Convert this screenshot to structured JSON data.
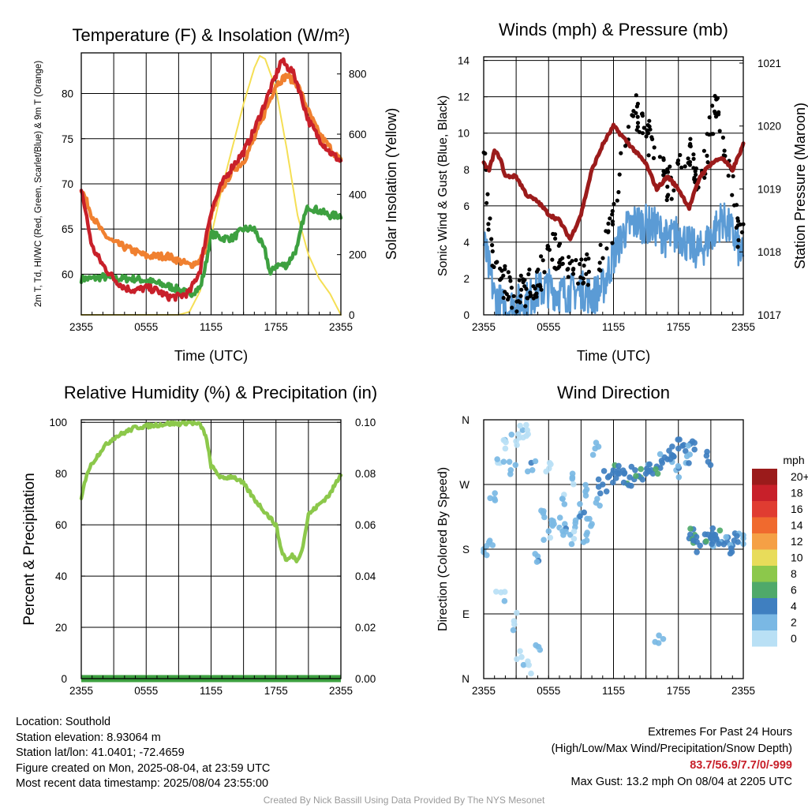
{
  "chart_data": [
    {
      "type": "line",
      "title": "Temperature (F) & Insolation (W/m²)",
      "xlabel": "Time (UTC)",
      "ylabel_left": "2m T, Td, HI/WC (Red, Green, Scarlet/Blue) & 9m T (Orange)",
      "ylabel_right": "Solar Insolation (Yellow)",
      "x_ticks": [
        "2355",
        "0555",
        "1155",
        "1755",
        "2355"
      ],
      "y_ticks_left": [
        60,
        65,
        70,
        75,
        80
      ],
      "ylim_left": [
        55.5,
        84.5
      ],
      "y_ticks_right": [
        0,
        200,
        400,
        600,
        800
      ],
      "ylim_right": [
        0,
        870
      ],
      "grid": true,
      "series": [
        {
          "name": "2m T",
          "color": "#c8202a",
          "axis": "left",
          "x": [
            0,
            1,
            2,
            3,
            4,
            5,
            6,
            7,
            8,
            9,
            10,
            11,
            11.5,
            12,
            13,
            14,
            15,
            16,
            17,
            18,
            18.5,
            19,
            19.5,
            20,
            21,
            22,
            23,
            24
          ],
          "y": [
            69.5,
            63,
            61,
            59.5,
            58.5,
            58.2,
            58.5,
            58.2,
            57.5,
            57.5,
            58,
            60.5,
            64,
            67,
            70,
            72,
            73.5,
            76,
            79,
            82,
            83.7,
            83,
            82.5,
            81,
            77,
            75,
            73.5,
            72.5
          ]
        },
        {
          "name": "9m T",
          "color": "#f08030",
          "axis": "left",
          "x": [
            0,
            1,
            2,
            3,
            4,
            5,
            6,
            7,
            8,
            9,
            10,
            11,
            11.5,
            12,
            13,
            14,
            15,
            16,
            17,
            18,
            19,
            20,
            21,
            22,
            23,
            24
          ],
          "y": [
            69.5,
            66.5,
            64.5,
            63.5,
            63,
            62.5,
            62,
            62,
            62,
            61.5,
            61,
            61.5,
            63,
            66.5,
            69.5,
            71.5,
            72.5,
            75,
            78,
            81,
            82,
            81,
            78,
            75.5,
            74,
            72.5
          ]
        },
        {
          "name": "Td",
          "color": "#3da040",
          "axis": "left",
          "x": [
            0,
            1,
            2,
            3,
            4,
            5,
            6,
            7,
            8,
            9,
            10,
            11,
            11.5,
            12,
            13,
            14,
            15,
            16,
            17,
            17.5,
            18,
            19,
            20,
            20.5,
            21,
            22,
            23,
            24
          ],
          "y": [
            59.5,
            59.5,
            59.7,
            59.5,
            59.5,
            59.5,
            59.3,
            59,
            58.7,
            58.3,
            57.8,
            58.5,
            61,
            64.5,
            64,
            64,
            65,
            65,
            62.5,
            60,
            61,
            61,
            63,
            66,
            67.5,
            67,
            66.5,
            66.5
          ]
        },
        {
          "name": "Solar Insolation",
          "color": "#f5df55",
          "axis": "right",
          "x": [
            0,
            3,
            6,
            9,
            9.5,
            10,
            11,
            12,
            13,
            14,
            15,
            16,
            16.5,
            17,
            18,
            19,
            20,
            21,
            22,
            23,
            24
          ],
          "y": [
            0,
            0,
            0,
            0,
            5,
            10,
            80,
            260,
            420,
            560,
            700,
            820,
            860,
            850,
            750,
            550,
            330,
            200,
            120,
            70,
            0
          ]
        }
      ]
    },
    {
      "type": "line",
      "title": "Winds (mph) & Pressure (mb)",
      "xlabel": "Time (UTC)",
      "ylabel_left": "Sonic Wind & Gust (Blue, Black)",
      "ylabel_right": "Station Pressure (Maroon)",
      "x_ticks": [
        "2355",
        "0555",
        "1155",
        "1755",
        "2355"
      ],
      "y_ticks_left": [
        0,
        2,
        4,
        6,
        8,
        10,
        12,
        14
      ],
      "ylim_left": [
        0,
        14.2
      ],
      "y_ticks_right": [
        1017,
        1018,
        1019,
        1020,
        1021
      ],
      "ylim_right": [
        1017,
        1021.1
      ],
      "grid": true,
      "series": [
        {
          "name": "Sonic Wind",
          "color": "#5b9bd5",
          "axis": "left",
          "style": "line",
          "x": [
            0,
            1,
            2,
            3,
            4,
            5,
            6,
            7,
            8,
            9,
            10,
            11,
            12,
            13,
            14,
            15,
            16,
            17,
            18,
            19,
            20,
            21,
            22,
            23,
            24
          ],
          "y": [
            4,
            1,
            0.3,
            0.6,
            0.8,
            1.3,
            1.5,
            1.2,
            1.2,
            1.4,
            1,
            1.5,
            3.2,
            4.6,
            5.1,
            5,
            4.8,
            4.1,
            4.5,
            3.8,
            3.5,
            4.3,
            5.3,
            4.5,
            3
          ]
        },
        {
          "name": "Gust",
          "color": "#000000",
          "axis": "left",
          "style": "dots",
          "x": [
            0,
            0.5,
            1,
            2,
            3,
            4,
            5,
            6,
            7,
            8,
            9,
            10,
            11,
            12,
            12.5,
            13,
            13.5,
            14,
            14.5,
            15,
            16,
            17,
            18,
            19,
            20,
            20.5,
            21,
            21.5,
            22,
            23,
            23.5,
            24
          ],
          "y": [
            9,
            5,
            2.5,
            1.8,
            1,
            1.5,
            1.8,
            3.5,
            3.5,
            2.5,
            2.3,
            2.5,
            3.5,
            5,
            7.5,
            9,
            10.5,
            11.5,
            10.5,
            10,
            9,
            7,
            8,
            9,
            7,
            8.5,
            10.5,
            11.5,
            9.5,
            7,
            4.5,
            4
          ]
        },
        {
          "name": "Station Pressure",
          "color": "#9b1b1b",
          "axis": "right",
          "style": "line",
          "x": [
            0,
            0.5,
            1,
            1.5,
            2,
            3,
            4,
            5,
            6,
            7,
            8,
            8.5,
            9,
            10,
            11,
            12,
            13,
            14,
            15,
            16,
            17,
            18,
            19,
            20,
            21,
            22,
            23,
            24
          ],
          "y": [
            1019.4,
            1019.3,
            1019.6,
            1019.5,
            1019.2,
            1019.2,
            1018.9,
            1018.8,
            1018.6,
            1018.5,
            1018.2,
            1018.4,
            1018.6,
            1019.3,
            1019.7,
            1020.0,
            1019.8,
            1019.6,
            1019.4,
            1019.0,
            1019.2,
            1019.0,
            1018.7,
            1019.2,
            1019.4,
            1019.5,
            1019.3,
            1019.7
          ]
        }
      ]
    },
    {
      "type": "line",
      "title": "Relative Humidity (%) & Precipitation (in)",
      "xlabel": "",
      "ylabel_left": "Percent & Precipitation",
      "x_ticks": [
        "2355",
        "0555",
        "1155",
        "1755",
        "2355"
      ],
      "y_ticks_left": [
        0,
        20,
        40,
        60,
        80,
        100
      ],
      "ylim_left": [
        0,
        101
      ],
      "y_ticks_right": [
        "0.00",
        "0.02",
        "0.04",
        "0.06",
        "0.08",
        "0.10"
      ],
      "ylim_right": [
        0,
        0.101
      ],
      "grid": true,
      "series": [
        {
          "name": "Relative Humidity",
          "color": "#8cc84b",
          "axis": "left",
          "x": [
            0,
            0.5,
            1,
            2,
            3,
            4,
            5,
            6,
            7,
            8,
            9,
            10,
            11,
            11.5,
            12,
            13,
            14,
            15,
            16,
            17,
            18,
            18.5,
            19,
            19.5,
            20,
            20.5,
            21,
            22,
            23,
            24
          ],
          "y": [
            70,
            80,
            84,
            90,
            94,
            96,
            98,
            98.5,
            99,
            99.5,
            99.5,
            100,
            99,
            95,
            83,
            78,
            79,
            76,
            70,
            65,
            60,
            50,
            46,
            48,
            46,
            52,
            64,
            68,
            72,
            80
          ]
        },
        {
          "name": "Precipitation",
          "color": "#3da040",
          "axis": "right",
          "x": [
            0,
            24
          ],
          "y": [
            0,
            0
          ]
        }
      ]
    },
    {
      "type": "scatter",
      "title": "Wind Direction",
      "ylabel_left": "Direction (Colored By Speed)",
      "x_ticks": [
        "2355",
        "0555",
        "1155",
        "1755",
        "2355"
      ],
      "y_ticks_left": [
        "N",
        "E",
        "S",
        "W",
        "N"
      ],
      "ylim_left": [
        0,
        360
      ],
      "grid": true,
      "colorbar": {
        "title": "mph",
        "labels": [
          "20+",
          "18",
          "16",
          "14",
          "12",
          "10",
          "8",
          "6",
          "4",
          "2",
          "0"
        ],
        "colors": [
          "#9b1b1b",
          "#c8202a",
          "#e03c31",
          "#f06a2e",
          "#f5a045",
          "#e8dc5a",
          "#8cc84b",
          "#4fa96a",
          "#3f7fc0",
          "#7ab8e4",
          "#b9e0f5"
        ]
      },
      "series": [
        {
          "name": "Wind Direction",
          "x": [
            0,
            0.5,
            1,
            1.5,
            2,
            2.5,
            3,
            3.5,
            4,
            4.5,
            5,
            5.5,
            6,
            6.5,
            7,
            7.5,
            8,
            8.5,
            9,
            9.5,
            10,
            10.5,
            11,
            11.5,
            12,
            12.5,
            13,
            13.5,
            14,
            14.5,
            15,
            15.5,
            16,
            16.5,
            17,
            17.5,
            18,
            18.5,
            19,
            19.5,
            20,
            20.5,
            21,
            21.5,
            22,
            22.5,
            23,
            23.5,
            24,
            1.6,
            2.8,
            3.2,
            4.1,
            5.2,
            6.1,
            7.3,
            8.2,
            9.4,
            10.3,
            16.2,
            17.8,
            18.7,
            19.3,
            20.6,
            21.4
          ],
          "y": [
            180,
            190,
            250,
            300,
            320,
            290,
            330,
            30,
            20,
            290,
            170,
            230,
            205,
            215,
            210,
            215,
            200,
            220,
            230,
            200,
            215,
            250,
            270,
            280,
            290,
            285,
            285,
            280,
            290,
            280,
            285,
            290,
            295,
            300,
            305,
            310,
            320,
            325,
            195,
            200,
            185,
            190,
            195,
            195,
            190,
            190,
            185,
            190,
            195,
            120,
            80,
            340,
            340,
            40,
            300,
            250,
            280,
            260,
            320,
            60,
            290,
            300,
            330,
            310,
            200
          ],
          "speed": [
            3,
            3,
            2,
            1,
            1,
            2,
            1,
            1,
            1,
            3,
            3,
            2,
            2,
            3,
            2,
            3,
            2,
            2,
            3,
            2,
            3,
            3,
            4,
            4,
            5,
            5,
            4,
            5,
            5,
            6,
            5,
            4,
            5,
            4,
            4,
            4,
            4,
            4,
            5,
            6,
            5,
            5,
            4,
            5,
            4,
            4,
            4,
            4,
            3,
            1,
            1,
            1,
            1,
            2,
            1,
            2,
            2,
            2,
            2,
            3,
            3,
            3,
            4,
            4,
            5
          ]
        }
      ]
    }
  ],
  "footer": {
    "location": "Location: Southold",
    "elevation": "Station elevation: 8.93064 m",
    "latlon": "Station lat/lon: 41.0401; -72.4659",
    "created": "Figure created on Mon, 2025-08-04, at 23:59 UTC",
    "recent": "Most recent data timestamp: 2025/08/04 23:55:00",
    "extremes_title": "Extremes For Past 24 Hours",
    "extremes_legend": "(High/Low/Max Wind/Precipitation/Snow Depth)",
    "extremes_values": "83.7/56.9/7.7/0/-999",
    "max_gust": "Max Gust: 13.2 mph On 08/04 at 2205 UTC",
    "credit": "Created By Nick Bassill Using Data Provided By The NYS Mesonet"
  }
}
